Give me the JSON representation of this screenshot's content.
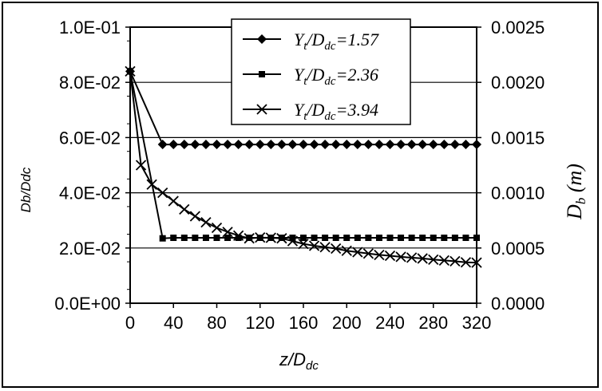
{
  "chart_data": {
    "type": "line",
    "xlabel": "z/D",
    "xlabel_sub": "dc",
    "ylabel_left": "Db/Ddc",
    "ylabel_right": "D",
    "ylabel_right_sub": "b",
    "ylabel_right_unit": "(m)",
    "xlim": [
      0,
      320
    ],
    "ylim_left": [
      0,
      0.1
    ],
    "ylim_right": [
      0,
      0.0025
    ],
    "x_ticks": [
      "0",
      "40",
      "80",
      "120",
      "160",
      "200",
      "240",
      "280",
      "320"
    ],
    "y_ticks_left": [
      "0.0E+00",
      "2.0E-02",
      "4.0E-02",
      "6.0E-02",
      "8.0E-02",
      "1.0E-01"
    ],
    "y_ticks_right": [
      "0.0000",
      "0.0005",
      "0.0010",
      "0.0015",
      "0.0020",
      "0.0025"
    ],
    "grid": "horizontal",
    "legend_position": "top-center",
    "series": [
      {
        "name": "Y",
        "name_sub1": "t",
        "name_mid": "/D",
        "name_sub2": "dc",
        "name_tail": "=1.57",
        "marker": "diamond",
        "x": [
          0,
          30,
          40,
          50,
          60,
          70,
          80,
          90,
          100,
          110,
          120,
          130,
          140,
          150,
          160,
          170,
          180,
          190,
          200,
          210,
          220,
          230,
          240,
          250,
          260,
          270,
          280,
          290,
          300,
          310,
          320
        ],
        "y": [
          0.084,
          0.0575,
          0.0575,
          0.0575,
          0.0575,
          0.0575,
          0.0575,
          0.0575,
          0.0575,
          0.0575,
          0.0575,
          0.0575,
          0.0575,
          0.0575,
          0.0575,
          0.0575,
          0.0575,
          0.0575,
          0.0575,
          0.0575,
          0.0575,
          0.0575,
          0.0575,
          0.0575,
          0.0575,
          0.0575,
          0.0575,
          0.0575,
          0.0575,
          0.0575,
          0.0575
        ]
      },
      {
        "name": "Y",
        "name_sub1": "t",
        "name_mid": "/D",
        "name_sub2": "dc",
        "name_tail": "=2.36",
        "marker": "square",
        "x": [
          0,
          30,
          40,
          50,
          60,
          70,
          80,
          90,
          100,
          110,
          120,
          130,
          140,
          150,
          160,
          170,
          180,
          190,
          200,
          210,
          220,
          230,
          240,
          250,
          260,
          270,
          280,
          290,
          300,
          310,
          320
        ],
        "y": [
          0.084,
          0.0235,
          0.0237,
          0.0237,
          0.0237,
          0.0237,
          0.0237,
          0.0237,
          0.0237,
          0.0237,
          0.0237,
          0.0237,
          0.0237,
          0.0237,
          0.0237,
          0.0237,
          0.0237,
          0.0237,
          0.0237,
          0.0237,
          0.0237,
          0.0237,
          0.0237,
          0.0237,
          0.0237,
          0.0237,
          0.0237,
          0.0237,
          0.0237,
          0.0237,
          0.0237
        ]
      },
      {
        "name": "Y",
        "name_sub1": "t",
        "name_mid": "/D",
        "name_sub2": "dc",
        "name_tail": "=3.94",
        "marker": "x",
        "x": [
          0,
          10,
          20,
          30,
          40,
          50,
          60,
          70,
          80,
          90,
          100,
          110,
          120,
          130,
          140,
          150,
          160,
          170,
          180,
          190,
          200,
          210,
          220,
          230,
          240,
          250,
          260,
          270,
          280,
          290,
          300,
          310,
          320
        ],
        "y": [
          0.084,
          0.05,
          0.043,
          0.04,
          0.037,
          0.034,
          0.0315,
          0.0293,
          0.0273,
          0.0258,
          0.0245,
          0.0235,
          0.0238,
          0.0237,
          0.0235,
          0.0225,
          0.0215,
          0.0208,
          0.0203,
          0.0198,
          0.019,
          0.0185,
          0.018,
          0.0175,
          0.0172,
          0.0168,
          0.0165,
          0.0162,
          0.0158,
          0.0155,
          0.0152,
          0.0148,
          0.0147
        ]
      }
    ]
  }
}
